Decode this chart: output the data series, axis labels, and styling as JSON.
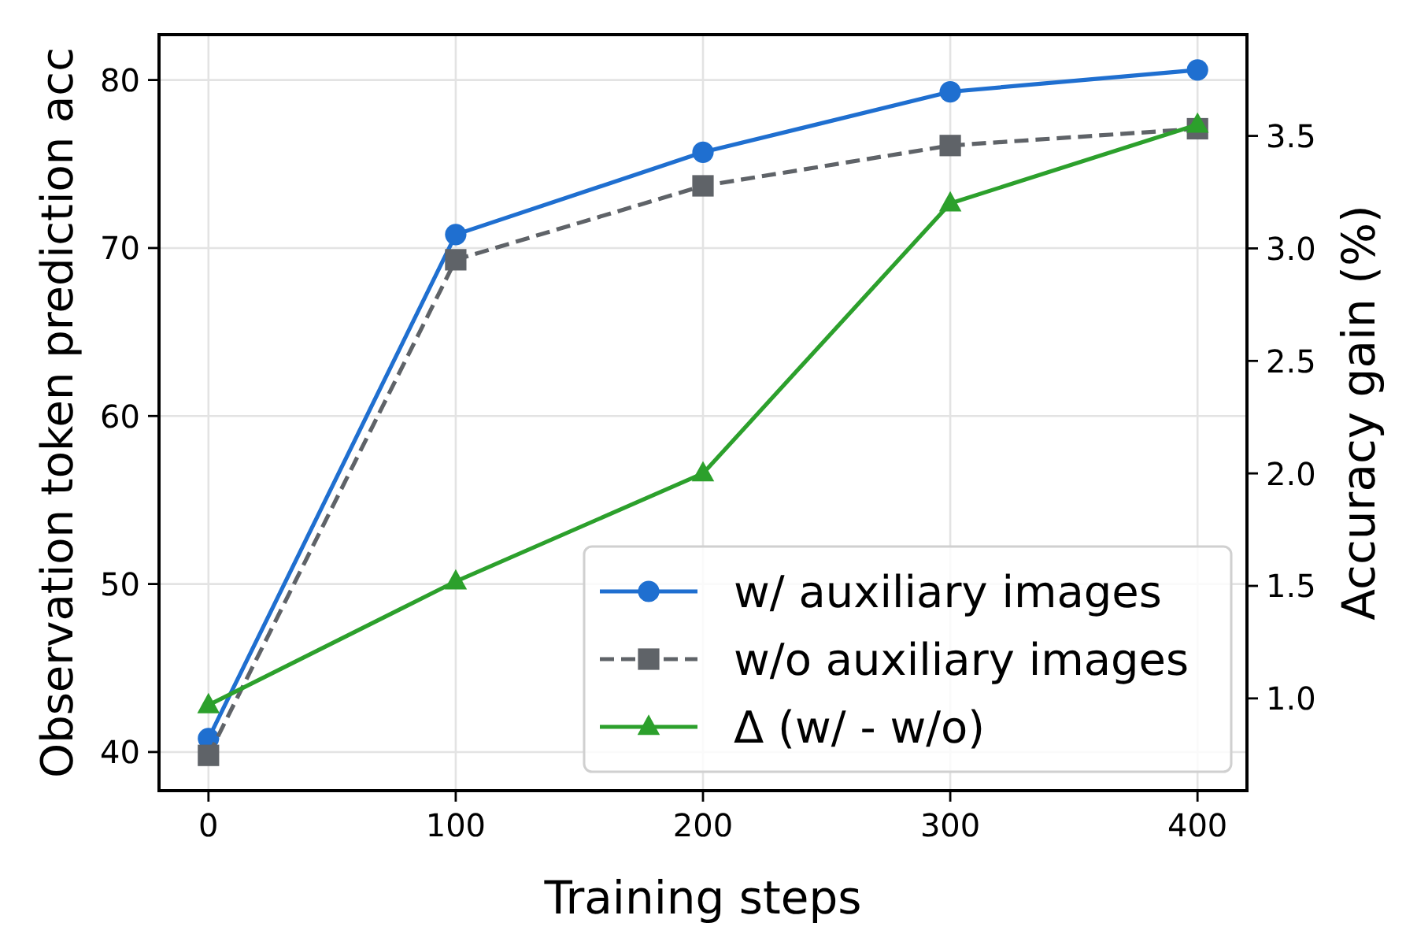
{
  "chart_data": {
    "type": "line",
    "xlabel": "Training steps",
    "ylabel": "Observation token prediction acc",
    "y2label": "Accuracy gain (%)",
    "x": [
      0,
      100,
      200,
      300,
      400
    ],
    "xlim": [
      -20,
      420
    ],
    "xticks": [
      0,
      100,
      200,
      300,
      400
    ],
    "ylim": [
      37.7,
      82.7
    ],
    "yticks": [
      40,
      50,
      60,
      70,
      80
    ],
    "y2lim": [
      0.59,
      3.95
    ],
    "y2ticks": [
      {
        "value": 1,
        "label": "1.0"
      },
      1.5,
      {
        "value": 2,
        "label": "2.0"
      },
      2.5,
      {
        "value": 3,
        "label": "3.0"
      },
      3.5
    ],
    "grid": true,
    "legend": "bottom right",
    "series": [
      {
        "name": "w/ auxiliary images",
        "color": "#1f6fd0",
        "marker": "circle",
        "line_style": "solid",
        "values": [
          40.8,
          70.8,
          75.7,
          79.3,
          80.6
        ]
      },
      {
        "name": "w/o auxiliary images",
        "color": "#5f6368",
        "marker": "square",
        "line_style": "dashed",
        "values": [
          39.8,
          69.3,
          73.7,
          76.1,
          77.1
        ]
      },
      {
        "name": "Δ (w/ - w/o)",
        "color": "#2ca02c",
        "marker": "triangle",
        "line_style": "solid",
        "axis": "y2",
        "values": [
          0.97,
          1.52,
          2.0,
          3.2,
          3.55
        ]
      }
    ]
  }
}
